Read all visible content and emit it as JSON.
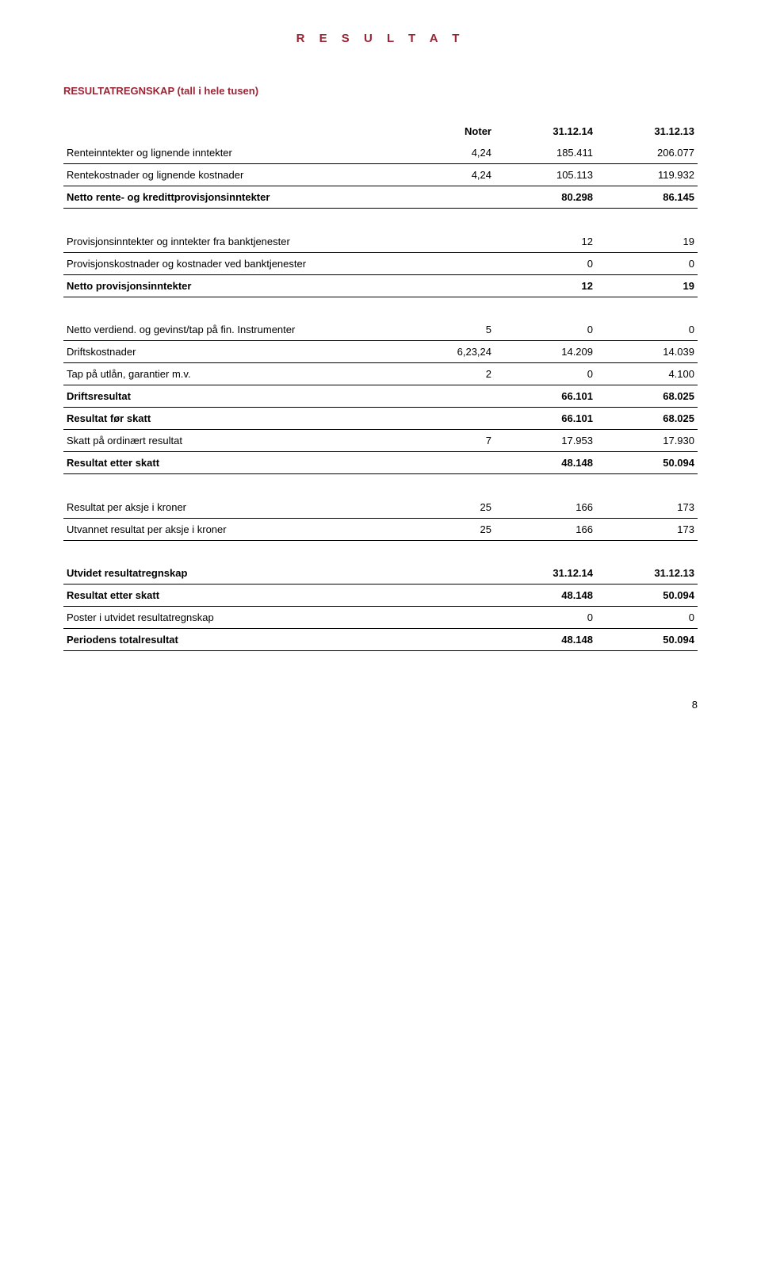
{
  "title": "R E S U L T A T",
  "section": "RESULTATREGNSKAP (tall i hele tusen)",
  "headers": {
    "noter": "Noter",
    "colA": "31.12.14",
    "colB": "31.12.13"
  },
  "rows1": [
    {
      "label": "Renteinntekter og lignende inntekter",
      "n": "4,24",
      "a": "185.411",
      "b": "206.077",
      "bold": false
    },
    {
      "label": "Rentekostnader og lignende kostnader",
      "n": "4,24",
      "a": "105.113",
      "b": "119.932",
      "bold": false
    },
    {
      "label": "Netto rente- og kredittprovisjonsinntekter",
      "n": "",
      "a": "80.298",
      "b": "86.145",
      "bold": true
    }
  ],
  "rows2": [
    {
      "label": "Provisjonsinntekter og inntekter fra banktjenester",
      "n": "",
      "a": "12",
      "b": "19",
      "bold": false
    },
    {
      "label": "Provisjonskostnader og kostnader ved banktjenester",
      "n": "",
      "a": "0",
      "b": "0",
      "bold": false
    },
    {
      "label": "Netto provisjonsinntekter",
      "n": "",
      "a": "12",
      "b": "19",
      "bold": true
    }
  ],
  "rows3": [
    {
      "label": "Netto verdiend. og gevinst/tap på fin. Instrumenter",
      "n": "5",
      "a": "0",
      "b": "0",
      "bold": false
    },
    {
      "label": "Driftskostnader",
      "n": "6,23,24",
      "a": "14.209",
      "b": "14.039",
      "bold": false
    },
    {
      "label": "Tap på utlån, garantier m.v.",
      "n": "2",
      "a": "0",
      "b": "4.100",
      "bold": false
    },
    {
      "label": "Driftsresultat",
      "n": "",
      "a": "66.101",
      "b": "68.025",
      "bold": true
    },
    {
      "label": "Resultat før skatt",
      "n": "",
      "a": "66.101",
      "b": "68.025",
      "bold": true
    },
    {
      "label": "Skatt på ordinært resultat",
      "n": "7",
      "a": "17.953",
      "b": "17.930",
      "bold": false
    },
    {
      "label": "Resultat etter skatt",
      "n": "",
      "a": "48.148",
      "b": "50.094",
      "bold": true
    }
  ],
  "rows4": [
    {
      "label": "Resultat per aksje i kroner",
      "n": "25",
      "a": "166",
      "b": "173",
      "bold": false
    },
    {
      "label": "Utvannet resultat per aksje i kroner",
      "n": "25",
      "a": "166",
      "b": "173",
      "bold": false
    }
  ],
  "rows5": [
    {
      "label": "Utvidet resultatregnskap",
      "n": "",
      "a": "31.12.14",
      "b": "31.12.13",
      "bold": true
    },
    {
      "label": "Resultat etter skatt",
      "n": "",
      "a": "48.148",
      "b": "50.094",
      "bold": true
    },
    {
      "label": "Poster i utvidet resultatregnskap",
      "n": "",
      "a": "0",
      "b": "0",
      "bold": false
    },
    {
      "label": "Periodens totalresultat",
      "n": "",
      "a": "48.148",
      "b": "50.094",
      "bold": true
    }
  ],
  "pageNumber": "8"
}
